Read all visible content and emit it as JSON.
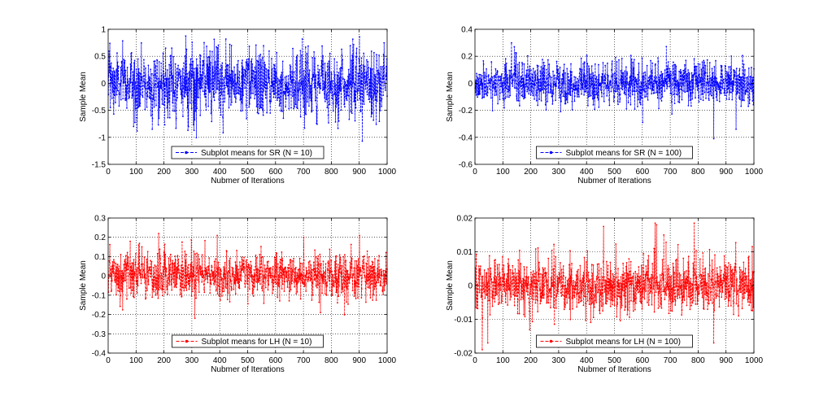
{
  "chart_data": [
    {
      "type": "line",
      "title": "",
      "xlabel": "Nubmer of Iterations",
      "ylabel": "Sample Mean",
      "xlim": [
        0,
        1000
      ],
      "ylim": [
        -1.5,
        1
      ],
      "xticks": [
        0,
        100,
        200,
        300,
        400,
        500,
        600,
        700,
        800,
        900,
        1000
      ],
      "yticks": [
        -1.5,
        -1,
        -0.5,
        0,
        0.5,
        1
      ],
      "ytick_labels": [
        "-1.5",
        "-1",
        "-0.5",
        "0",
        "0.5",
        "1"
      ],
      "grid": true,
      "legend_position": "bottom-center",
      "series": [
        {
          "name": "Subplot means for SR (N = 10)",
          "color": "#0000ff",
          "n_points": 1000,
          "mean": 0,
          "std": 0.32,
          "peaks": [
            [
              5,
              0.74
            ],
            [
              90,
              -0.8
            ],
            [
              300,
              0.76
            ],
            [
              695,
              0.82
            ],
            [
              900,
              0.86
            ],
            [
              910,
              -1.07
            ],
            [
              960,
              -0.76
            ]
          ],
          "values": []
        }
      ]
    },
    {
      "type": "line",
      "title": "",
      "xlabel": "Nubmer of Iterations",
      "ylabel": "Sample Mean",
      "xlim": [
        0,
        1000
      ],
      "ylim": [
        -0.6,
        0.4
      ],
      "xticks": [
        0,
        100,
        200,
        300,
        400,
        500,
        600,
        700,
        800,
        900,
        1000
      ],
      "yticks": [
        -0.6,
        -0.4,
        -0.2,
        0,
        0.2,
        0.4
      ],
      "ytick_labels": [
        "-0.6",
        "-0.4",
        "-0.2",
        "0",
        "0.2",
        "0.4"
      ],
      "grid": true,
      "legend_position": "bottom-center",
      "series": [
        {
          "name": "Subplot means for SR (N = 100)",
          "color": "#0000ff",
          "n_points": 1000,
          "mean": 0,
          "std": 0.085,
          "peaks": [
            [
              130,
              0.3
            ],
            [
              140,
              0.27
            ],
            [
              855,
              -0.41
            ],
            [
              935,
              -0.34
            ],
            [
              600,
              -0.29
            ]
          ],
          "values": []
        }
      ]
    },
    {
      "type": "line",
      "title": "",
      "xlabel": "Nubmer of Iterations",
      "ylabel": "Sample Mean",
      "xlim": [
        0,
        1000
      ],
      "ylim": [
        -0.4,
        0.3
      ],
      "xticks": [
        0,
        100,
        200,
        300,
        400,
        500,
        600,
        700,
        800,
        900,
        1000
      ],
      "yticks": [
        -0.4,
        -0.3,
        -0.2,
        -0.1,
        0,
        0.1,
        0.2,
        0.3
      ],
      "ytick_labels": [
        "-0.4",
        "-0.3",
        "-0.2",
        "-0.1",
        "0",
        "0.1",
        "0.2",
        "0.3"
      ],
      "grid": true,
      "legend_position": "bottom-center",
      "series": [
        {
          "name": "Subplot means for LH (N = 10)",
          "color": "#ff0000",
          "n_points": 1000,
          "mean": 0,
          "std": 0.062,
          "peaks": [
            [
              180,
              0.22
            ],
            [
              310,
              -0.22
            ],
            [
              390,
              0.21
            ],
            [
              700,
              0.2
            ],
            [
              760,
              -0.19
            ],
            [
              900,
              0.21
            ]
          ],
          "values": []
        }
      ]
    },
    {
      "type": "line",
      "title": "",
      "xlabel": "Nubmer of Iterations",
      "ylabel": "Sample Mean",
      "xlim": [
        0,
        1000
      ],
      "ylim": [
        -0.02,
        0.02
      ],
      "xticks": [
        0,
        100,
        200,
        300,
        400,
        500,
        600,
        700,
        800,
        900,
        1000
      ],
      "yticks": [
        -0.02,
        -0.01,
        0,
        0.01,
        0.02
      ],
      "ytick_labels": [
        "-0.02",
        "-0.01",
        "0",
        "0.01",
        "0.02"
      ],
      "grid": true,
      "legend_position": "bottom-center",
      "series": [
        {
          "name": "Subplot means for LH (N = 100)",
          "color": "#ff0000",
          "n_points": 1000,
          "mean": 0,
          "std": 0.0042,
          "peaks": [
            [
              25,
              -0.019
            ],
            [
              45,
              -0.017
            ],
            [
              460,
              0.0175
            ],
            [
              645,
              0.0185
            ],
            [
              650,
              0.018
            ],
            [
              785,
              0.0185
            ],
            [
              855,
              -0.017
            ]
          ],
          "values": []
        }
      ]
    }
  ]
}
